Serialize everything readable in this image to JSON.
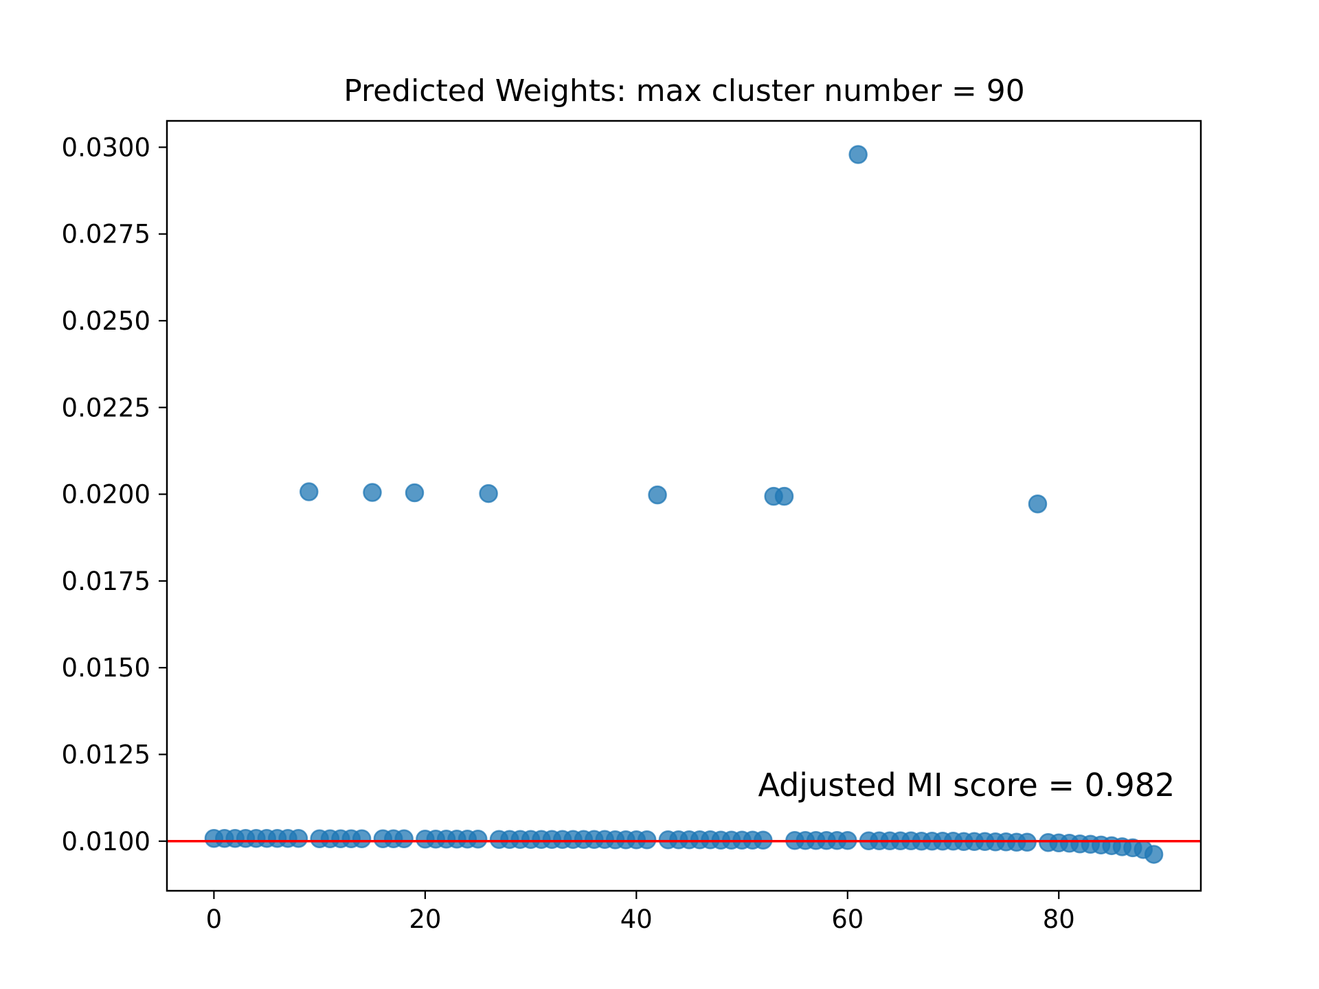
{
  "chart_data": {
    "type": "scatter",
    "title": "Predicted Weights: max cluster number = 90",
    "xlabel": "",
    "ylabel": "",
    "xlim": [
      -4.45,
      93.45
    ],
    "ylim": [
      0.00857,
      0.03076
    ],
    "x_ticks": [
      0,
      20,
      40,
      60,
      80
    ],
    "x_tick_labels": [
      "0",
      "20",
      "40",
      "60",
      "80"
    ],
    "y_ticks": [
      0.01,
      0.0125,
      0.015,
      0.0175,
      0.02,
      0.0225,
      0.025,
      0.0275,
      0.03
    ],
    "y_tick_labels": [
      "0.0100",
      "0.0125",
      "0.0150",
      "0.0175",
      "0.0200",
      "0.0225",
      "0.0250",
      "0.0275",
      "0.0300"
    ],
    "grid": false,
    "marker_color": "#1f77b4",
    "marker_alpha": 0.75,
    "reference_line": {
      "y": 0.01,
      "color": "#ff0000"
    },
    "annotation": {
      "text": "Adjusted MI score = 0.982",
      "x": 91,
      "y": 0.0113
    },
    "series": [
      {
        "x": [
          0,
          1,
          2,
          3,
          4,
          5,
          6,
          7,
          8,
          9,
          10,
          11,
          12,
          13,
          14,
          15,
          16,
          17,
          18,
          19,
          20,
          21,
          22,
          23,
          24,
          25,
          26,
          27,
          28,
          29,
          30,
          31,
          32,
          33,
          34,
          35,
          36,
          37,
          38,
          39,
          40,
          41,
          42,
          43,
          44,
          45,
          46,
          47,
          48,
          49,
          50,
          51,
          52,
          53,
          54,
          55,
          56,
          57,
          58,
          59,
          60,
          61,
          62,
          63,
          64,
          65,
          66,
          67,
          68,
          69,
          70,
          71,
          72,
          73,
          74,
          75,
          76,
          77,
          78,
          79,
          80,
          81,
          82,
          83,
          84,
          85,
          86,
          87,
          88,
          89
        ],
        "y": [
          0.01008,
          0.01008,
          0.01008,
          0.01008,
          0.01008,
          0.01008,
          0.01008,
          0.01008,
          0.01008,
          0.02007,
          0.01007,
          0.01007,
          0.01007,
          0.01007,
          0.01007,
          0.02005,
          0.01007,
          0.01007,
          0.01007,
          0.02004,
          0.01006,
          0.01006,
          0.01006,
          0.01006,
          0.01006,
          0.01006,
          0.02002,
          0.01005,
          0.01005,
          0.01005,
          0.01005,
          0.01005,
          0.01005,
          0.01005,
          0.01005,
          0.01005,
          0.01005,
          0.01005,
          0.01004,
          0.01004,
          0.01004,
          0.01004,
          0.01998,
          0.01004,
          0.01004,
          0.01004,
          0.01004,
          0.01004,
          0.01003,
          0.01003,
          0.01003,
          0.01003,
          0.01003,
          0.01994,
          0.01994,
          0.01002,
          0.01002,
          0.01002,
          0.01002,
          0.01002,
          0.01002,
          0.02979,
          0.01001,
          0.01001,
          0.01001,
          0.01001,
          0.01001,
          0.01,
          0.01,
          0.01,
          0.01,
          0.00999,
          0.00999,
          0.00999,
          0.00998,
          0.00998,
          0.00997,
          0.00997,
          0.01972,
          0.00996,
          0.00995,
          0.00994,
          0.00992,
          0.00991,
          0.00989,
          0.00987,
          0.00984,
          0.00981,
          0.00976,
          0.00962
        ]
      }
    ]
  }
}
